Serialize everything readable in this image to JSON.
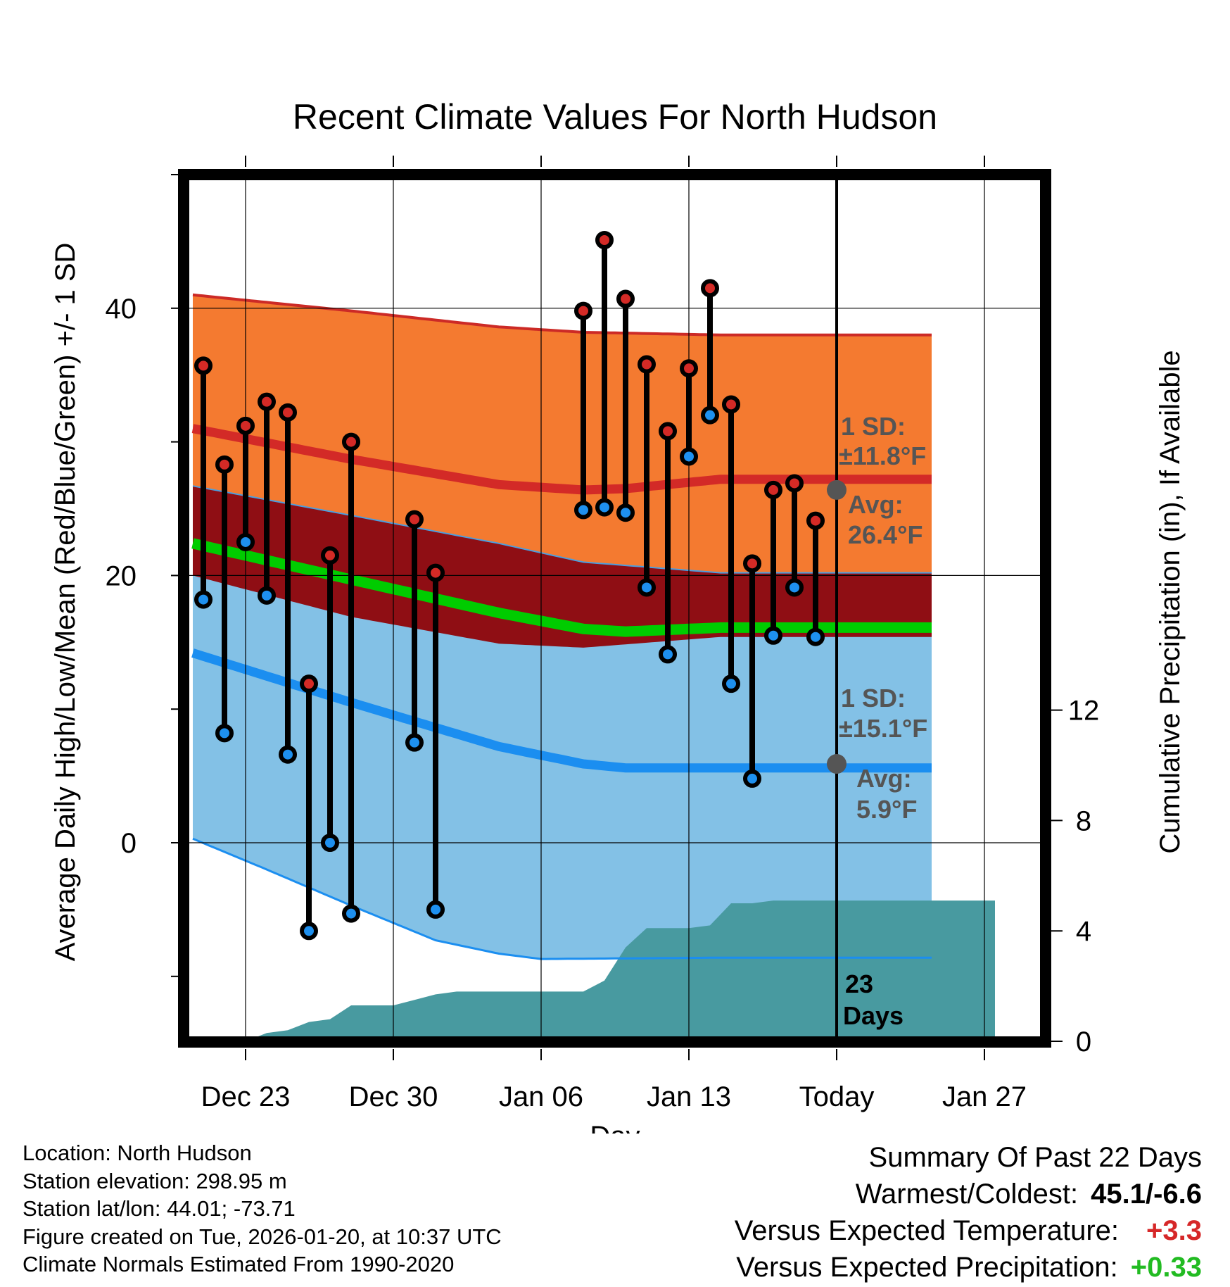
{
  "title": "Recent Climate Values For North Hudson",
  "chart_data": {
    "type": "line",
    "title": "Recent Climate Values For North Hudson",
    "xlabel": "Day",
    "ylabel_left": "Average Daily High/Low/Mean (Red/Blue/Green) +/- 1 SD",
    "ylabel_right": "Cumulative Precipitation (in), If Available",
    "x_ticks": [
      "Dec 23",
      "Dec 30",
      "Jan 06",
      "Jan 13",
      "Today",
      "Jan 27"
    ],
    "y_ticks_left": [
      "0",
      "20",
      "40"
    ],
    "y_ticks_right": [
      "0",
      "4",
      "8",
      "12"
    ],
    "ylim_left": [
      -14,
      51
    ],
    "ylim_right": [
      0,
      25.2
    ],
    "normals": {
      "high_mean": [
        [
          -0.5,
          31.0
        ],
        [
          7,
          28.7
        ],
        [
          14,
          26.8
        ],
        [
          18,
          26.4
        ],
        [
          20,
          26.5
        ],
        [
          24.5,
          27.2
        ]
      ],
      "high_upper": [
        [
          -0.5,
          41.0
        ],
        [
          7,
          39.8
        ],
        [
          14,
          38.6
        ],
        [
          18,
          38.2
        ],
        [
          24.5,
          38.0
        ]
      ],
      "low_mean": [
        [
          -0.5,
          14.2
        ],
        [
          7,
          10.5
        ],
        [
          14,
          7.2
        ],
        [
          18,
          5.9
        ],
        [
          20,
          5.6
        ],
        [
          24.5,
          5.6
        ]
      ],
      "low_lower": [
        [
          -0.5,
          0.3
        ],
        [
          3,
          -2.0
        ],
        [
          7,
          -4.7
        ],
        [
          11,
          -7.3
        ],
        [
          14,
          -8.3
        ],
        [
          16,
          -8.7
        ],
        [
          24.5,
          -8.6
        ]
      ],
      "low_upper": [
        [
          -0.5,
          26.7
        ],
        [
          7,
          24.5
        ],
        [
          14,
          22.4
        ],
        [
          18,
          21.0
        ],
        [
          24.5,
          20.2
        ]
      ],
      "mean_line": [
        [
          -0.5,
          22.4
        ],
        [
          7,
          19.7
        ],
        [
          14,
          17.2
        ],
        [
          18,
          16.0
        ],
        [
          20,
          15.8
        ],
        [
          24.5,
          16.1
        ]
      ],
      "high_lower": [
        [
          -0.5,
          20.0
        ],
        [
          7,
          16.9
        ],
        [
          14,
          14.9
        ],
        [
          18,
          14.6
        ],
        [
          24.5,
          15.4
        ]
      ]
    },
    "daily": [
      {
        "day": 0,
        "high": 35.7,
        "low": 18.2
      },
      {
        "day": 1,
        "high": 28.3,
        "low": 8.2
      },
      {
        "day": 2,
        "high": 31.2,
        "low": 22.5
      },
      {
        "day": 3,
        "high": 33.0,
        "low": 18.5
      },
      {
        "day": 4,
        "high": 32.2,
        "low": 6.6
      },
      {
        "day": 5,
        "high": 11.9,
        "low": -6.6
      },
      {
        "day": 6,
        "high": 21.5,
        "low": 0.0
      },
      {
        "day": 7,
        "high": 30.0,
        "low": -5.3
      },
      {
        "day": 10,
        "high": 24.2,
        "low": 7.5
      },
      {
        "day": 11,
        "high": 20.2,
        "low": -5.0
      },
      {
        "day": 18,
        "high": 39.8,
        "low": 24.9
      },
      {
        "day": 19,
        "high": 45.1,
        "low": 25.1
      },
      {
        "day": 20,
        "high": 40.7,
        "low": 24.7
      },
      {
        "day": 21,
        "high": 35.8,
        "low": 19.1
      },
      {
        "day": 22,
        "high": 30.8,
        "low": 14.1
      },
      {
        "day": 23,
        "high": 35.5,
        "low": 28.9
      },
      {
        "day": 24,
        "high": 41.5,
        "low": 32.0
      },
      {
        "day": 25,
        "high": 32.8,
        "low": 11.9
      },
      {
        "day": 26,
        "high": 20.9,
        "low": 4.8
      },
      {
        "day": 27,
        "high": 26.4,
        "low": 15.5
      },
      {
        "day": 28,
        "high": 26.9,
        "low": 19.1
      },
      {
        "day": 29,
        "high": 24.1,
        "low": 15.4
      }
    ],
    "precip_cumulative": [
      [
        -0.5,
        0
      ],
      [
        2,
        0
      ],
      [
        3,
        0.3
      ],
      [
        4,
        0.4
      ],
      [
        5,
        0.7
      ],
      [
        6,
        0.8
      ],
      [
        7,
        1.3
      ],
      [
        8,
        1.3
      ],
      [
        9,
        1.3
      ],
      [
        10,
        1.5
      ],
      [
        11,
        1.7
      ],
      [
        12,
        1.8
      ],
      [
        17,
        1.8
      ],
      [
        18,
        1.8
      ],
      [
        19,
        2.2
      ],
      [
        20,
        3.4
      ],
      [
        21,
        4.1
      ],
      [
        22,
        4.1
      ],
      [
        23,
        4.1
      ],
      [
        24,
        4.2
      ],
      [
        25,
        5.0
      ],
      [
        26,
        5.0
      ],
      [
        27,
        5.1
      ],
      [
        28,
        5.1
      ],
      [
        29,
        5.1
      ],
      [
        30,
        5.1
      ],
      [
        37.5,
        5.1
      ]
    ],
    "today_day": 30,
    "annotations": {
      "high": {
        "sd_label": "1 SD:",
        "sd_value": "±11.8°F",
        "avg_label": "Avg:",
        "avg_value": "26.4°F",
        "avg": 26.4
      },
      "low": {
        "sd_label": "1 SD:",
        "sd_value": "±15.1°F",
        "avg_label": "Avg:",
        "avg_value": "5.9°F",
        "avg": 5.9
      },
      "days_count": "23",
      "days_label": "Days"
    },
    "colors": {
      "high_band": "#f47a30",
      "mid_band": "#8f0e14",
      "low_band": "#83c1e6",
      "high_line": "#d32a27",
      "low_line": "#1b8ef0",
      "mean_line": "#00cc00",
      "precip": "#489aa0",
      "high_dot": "#d42a26",
      "low_dot": "#1e90ef"
    }
  },
  "footer": {
    "location": "Location: North Hudson",
    "elevation": "Station elevation: 298.95 m",
    "latlon": "Station lat/lon: 44.01; -73.71",
    "created": "Figure created on Tue, 2026-01-20, at 10:37 UTC",
    "normals": "Climate Normals Estimated From 1990-2020"
  },
  "summary": {
    "title": "Summary Of Past 22 Days",
    "warm_cold_label": "Warmest/Coldest:",
    "warm_cold_value": "45.1/-6.6",
    "temp_label": "Versus Expected Temperature:",
    "temp_value": "+3.3",
    "temp_color": "#d62728",
    "precip_label": "Versus Expected Precipitation:",
    "precip_value": "+0.33",
    "precip_color": "#22bb22"
  }
}
